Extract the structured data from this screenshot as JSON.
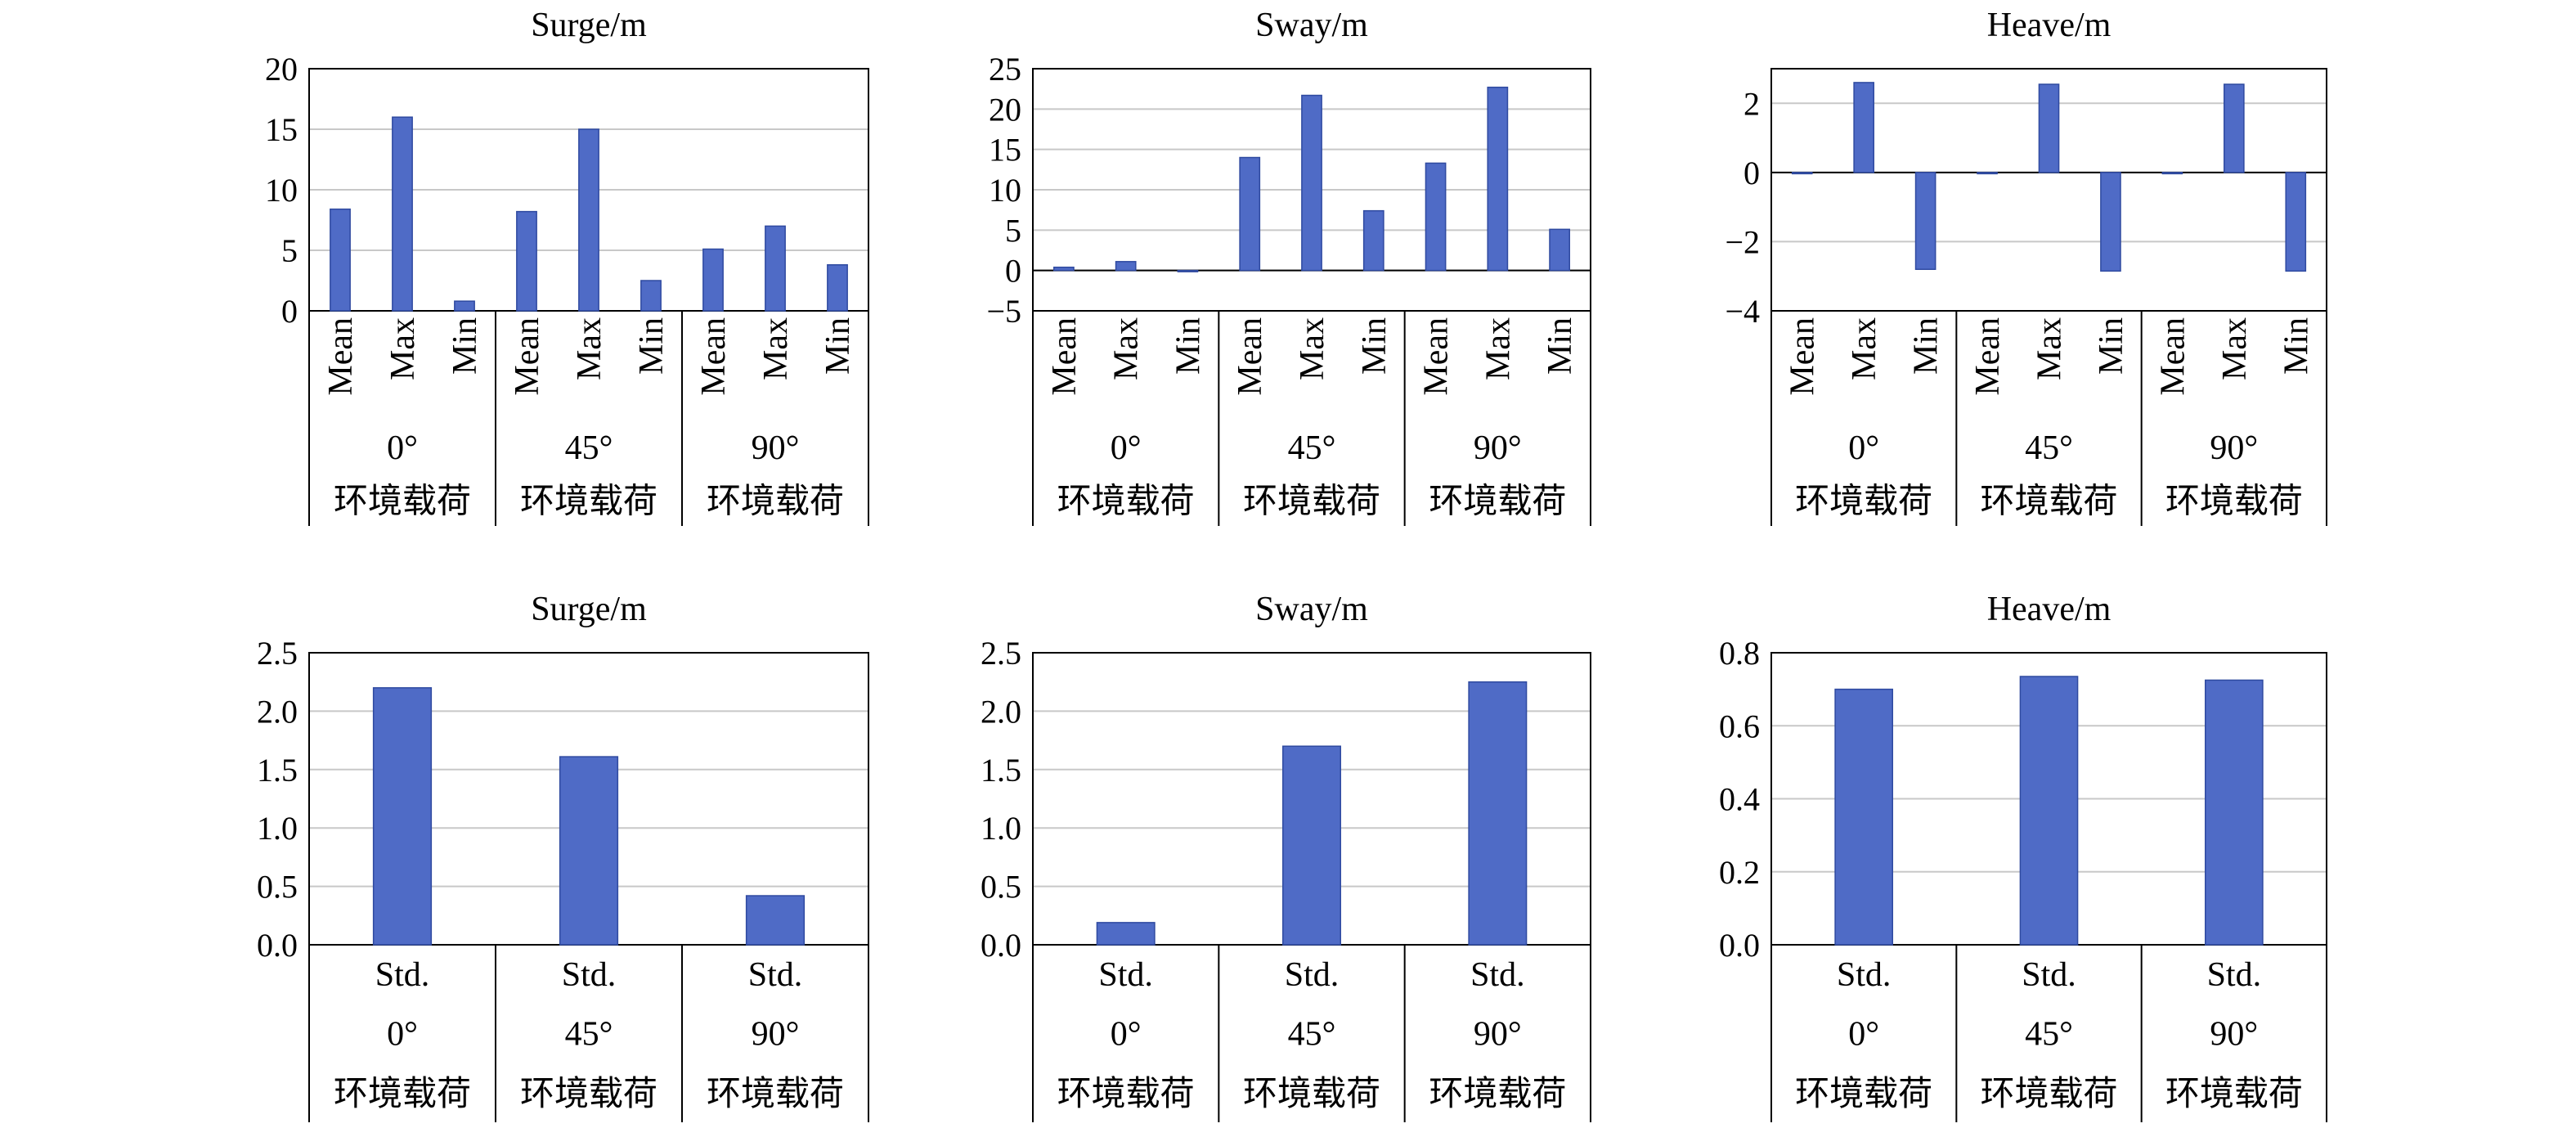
{
  "chart_data": [
    {
      "type": "bar",
      "title": "Surge/m",
      "ylim": [
        0,
        20
      ],
      "yticks": [
        0,
        5,
        10,
        15,
        20
      ],
      "grid": "horizontal",
      "groups": [
        "0°",
        "45°",
        "90°"
      ],
      "group_suffix": "环境载荷",
      "stats": [
        "Mean",
        "Max",
        "Min"
      ],
      "values": [
        [
          8.4,
          16.0,
          0.8
        ],
        [
          8.2,
          15.0,
          2.5
        ],
        [
          5.1,
          7.0,
          3.8
        ]
      ]
    },
    {
      "type": "bar",
      "title": "Sway/m",
      "ylim": [
        -5,
        25
      ],
      "yticks": [
        -5,
        0,
        5,
        10,
        15,
        20,
        25
      ],
      "grid": "horizontal",
      "groups": [
        "0°",
        "45°",
        "90°"
      ],
      "group_suffix": "环境载荷",
      "stats": [
        "Mean",
        "Max",
        "Min"
      ],
      "values": [
        [
          0.4,
          1.1,
          0.0
        ],
        [
          14.0,
          21.7,
          7.4
        ],
        [
          13.3,
          22.7,
          5.1
        ]
      ]
    },
    {
      "type": "bar",
      "title": "Heave/m",
      "ylim": [
        -4,
        3
      ],
      "yticks": [
        -4,
        -2,
        0,
        2
      ],
      "grid": "horizontal",
      "groups": [
        "0°",
        "45°",
        "90°"
      ],
      "group_suffix": "环境载荷",
      "stats": [
        "Mean",
        "Max",
        "Min"
      ],
      "values": [
        [
          0.0,
          2.6,
          -2.8
        ],
        [
          0.0,
          2.55,
          -2.85
        ],
        [
          0.0,
          2.55,
          -2.85
        ]
      ]
    },
    {
      "type": "bar",
      "title": "Surge/m",
      "ylim": [
        0,
        2.5
      ],
      "yticks": [
        0,
        0.5,
        1.0,
        1.5,
        2.0,
        2.5
      ],
      "grid": "horizontal",
      "groups": [
        "0°",
        "45°",
        "90°"
      ],
      "group_suffix": "环境载荷",
      "stats": [
        "Std."
      ],
      "values": [
        [
          2.2
        ],
        [
          1.61
        ],
        [
          0.42
        ]
      ]
    },
    {
      "type": "bar",
      "title": "Sway/m",
      "ylim": [
        0,
        2.5
      ],
      "yticks": [
        0,
        0.5,
        1.0,
        1.5,
        2.0,
        2.5
      ],
      "grid": "horizontal",
      "groups": [
        "0°",
        "45°",
        "90°"
      ],
      "group_suffix": "环境载荷",
      "stats": [
        "Std."
      ],
      "values": [
        [
          0.19
        ],
        [
          1.7
        ],
        [
          2.25
        ]
      ]
    },
    {
      "type": "bar",
      "title": "Heave/m",
      "ylim": [
        0,
        0.8
      ],
      "yticks": [
        0,
        0.2,
        0.4,
        0.6,
        0.8
      ],
      "grid": "horizontal",
      "groups": [
        "0°",
        "45°",
        "90°"
      ],
      "group_suffix": "环境载荷",
      "stats": [
        "Std."
      ],
      "values": [
        [
          0.7
        ],
        [
          0.735
        ],
        [
          0.725
        ]
      ]
    }
  ],
  "colors": {
    "bar": "#4f6bc6",
    "bar_edge": "#2f4aa0",
    "grid": "#c8c8c8",
    "axis": "#000000"
  }
}
